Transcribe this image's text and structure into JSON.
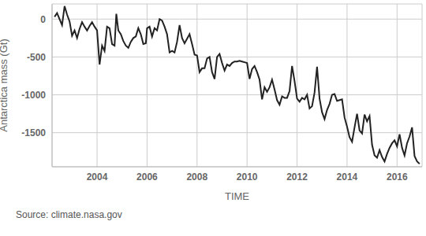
{
  "chart_data": {
    "type": "line",
    "x_label": "TIME",
    "y_label": "Antarctica mass (Gt)",
    "source": "Source: climate.nasa.gov",
    "color": "#222222",
    "grid": true,
    "xlim": [
      2002.2,
      2017.0
    ],
    "xticks": [
      2004,
      2006,
      2008,
      2010,
      2012,
      2014,
      2016
    ],
    "ylim": [
      -1950,
      200
    ],
    "yticks": [
      -1500,
      -1000,
      -500,
      0
    ],
    "x": [
      2002.3,
      2002.4,
      2002.5,
      2002.6,
      2002.7,
      2002.8,
      2002.9,
      2003.0,
      2003.1,
      2003.2,
      2003.3,
      2003.4,
      2003.5,
      2003.6,
      2003.7,
      2003.8,
      2003.9,
      2004.0,
      2004.1,
      2004.2,
      2004.3,
      2004.4,
      2004.5,
      2004.6,
      2004.7,
      2004.77,
      2004.85,
      2004.95,
      2005.05,
      2005.15,
      2005.25,
      2005.35,
      2005.45,
      2005.55,
      2005.65,
      2005.75,
      2005.85,
      2005.95,
      2006.0,
      2006.1,
      2006.2,
      2006.3,
      2006.4,
      2006.5,
      2006.6,
      2006.7,
      2006.8,
      2006.9,
      2007.0,
      2007.1,
      2007.2,
      2007.3,
      2007.4,
      2007.5,
      2007.6,
      2007.7,
      2007.8,
      2007.9,
      2008.0,
      2008.1,
      2008.2,
      2008.3,
      2008.4,
      2008.5,
      2008.6,
      2008.7,
      2008.8,
      2008.9,
      2009.0,
      2009.1,
      2009.2,
      2009.3,
      2009.4,
      2009.5,
      2009.6,
      2009.7,
      2009.8,
      2009.9,
      2010.0,
      2010.1,
      2010.2,
      2010.3,
      2010.4,
      2010.5,
      2010.6,
      2010.7,
      2010.8,
      2010.9,
      2011.0,
      2011.1,
      2011.2,
      2011.3,
      2011.4,
      2011.5,
      2011.6,
      2011.7,
      2011.8,
      2011.9,
      2012.0,
      2012.1,
      2012.2,
      2012.3,
      2012.4,
      2012.5,
      2012.6,
      2012.7,
      2012.8,
      2012.9,
      2013.0,
      2013.1,
      2013.2,
      2013.3,
      2013.4,
      2013.5,
      2013.6,
      2013.7,
      2013.8,
      2013.9,
      2014.0,
      2014.1,
      2014.2,
      2014.3,
      2014.4,
      2014.5,
      2014.6,
      2014.7,
      2014.8,
      2014.9,
      2015.0,
      2015.1,
      2015.2,
      2015.3,
      2015.4,
      2015.5,
      2015.6,
      2015.7,
      2015.8,
      2015.9,
      2016.0,
      2016.1,
      2016.2,
      2016.3,
      2016.4,
      2016.5,
      2016.6,
      2016.7,
      2016.8,
      2016.9
    ],
    "values": [
      30,
      80,
      0,
      -80,
      170,
      60,
      -30,
      -220,
      -150,
      -250,
      -130,
      -40,
      -100,
      -150,
      -90,
      -40,
      -100,
      -150,
      -600,
      -350,
      -420,
      -100,
      -120,
      -330,
      -350,
      70,
      -150,
      -200,
      -290,
      -350,
      -380,
      -300,
      -250,
      -230,
      -120,
      -200,
      -330,
      -320,
      -120,
      -100,
      -230,
      -120,
      -150,
      0,
      -20,
      -100,
      -200,
      -440,
      -420,
      -440,
      -300,
      -80,
      -250,
      -320,
      -260,
      -200,
      -330,
      -470,
      -480,
      -700,
      -650,
      -650,
      -520,
      -500,
      -700,
      -790,
      -500,
      -460,
      -580,
      -680,
      -600,
      -620,
      -580,
      -560,
      -560,
      -550,
      -560,
      -570,
      -580,
      -790,
      -660,
      -620,
      -700,
      -800,
      -1060,
      -900,
      -960,
      -900,
      -800,
      -930,
      -1070,
      -1130,
      -1020,
      -1040,
      -1040,
      -950,
      -620,
      -820,
      -1050,
      -1090,
      -1040,
      -1060,
      -1000,
      -1180,
      -1150,
      -970,
      -630,
      -1050,
      -1230,
      -1320,
      -1200,
      -1120,
      -1000,
      -990,
      -1080,
      -1070,
      -1060,
      -1300,
      -1420,
      -1560,
      -1620,
      -1430,
      -1250,
      -1470,
      -1510,
      -1260,
      -1350,
      -1280,
      -1660,
      -1800,
      -1830,
      -1730,
      -1820,
      -1880,
      -1780,
      -1700,
      -1640,
      -1600,
      -1680,
      -1520,
      -1700,
      -1800,
      -1640,
      -1550,
      -1430,
      -1810,
      -1880,
      -1910
    ]
  }
}
